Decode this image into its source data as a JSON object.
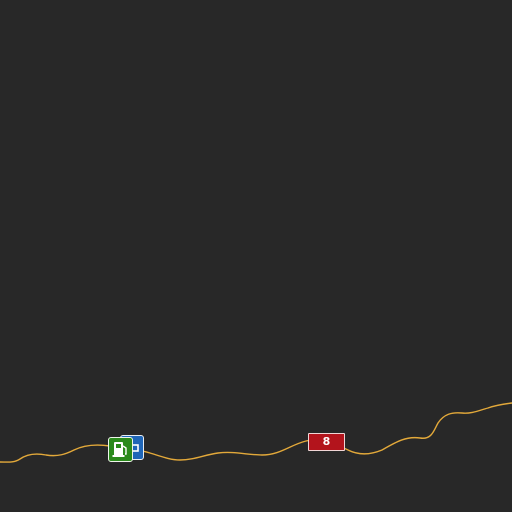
{
  "map": {
    "background_color": "#282828",
    "road": {
      "color": "#e3a93a",
      "route_shield": {
        "label": "8",
        "color": "#b3141c"
      }
    },
    "pois": [
      {
        "type": "fuel-station",
        "icon": "fuel-pump-icon",
        "color": "#2b8a1c"
      },
      {
        "type": "parking",
        "icon": "parking-icon",
        "color": "#1f66b8"
      }
    ]
  }
}
